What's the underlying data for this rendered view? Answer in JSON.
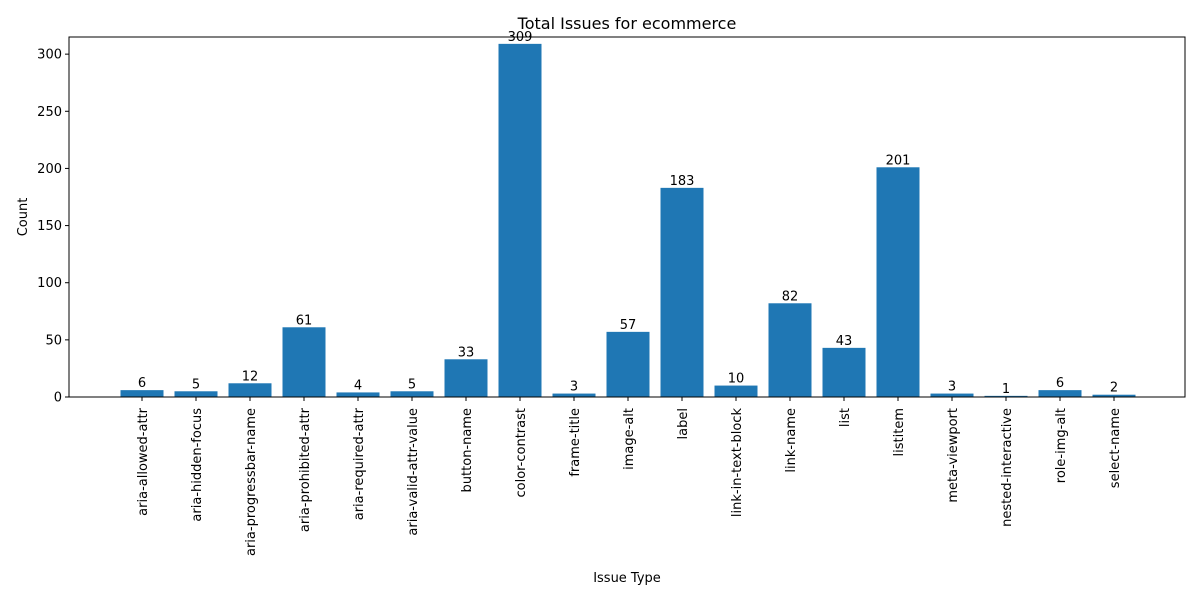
{
  "chart_data": {
    "type": "bar",
    "title": "Total Issues for ecommerce",
    "xlabel": "Issue Type",
    "ylabel": "Count",
    "ylim": [
      0,
      315
    ],
    "yticks": [
      0,
      50,
      100,
      150,
      200,
      250,
      300
    ],
    "grid": false,
    "bar_color": "#1f77b4",
    "categories": [
      "aria-allowed-attr",
      "aria-hidden-focus",
      "aria-progressbar-name",
      "aria-prohibited-attr",
      "aria-required-attr",
      "aria-valid-attr-value",
      "button-name",
      "color-contrast",
      "frame-title",
      "image-alt",
      "label",
      "link-in-text-block",
      "link-name",
      "list",
      "listitem",
      "meta-viewport",
      "nested-interactive",
      "role-img-alt",
      "select-name"
    ],
    "values": [
      6,
      5,
      12,
      61,
      4,
      5,
      33,
      309,
      3,
      57,
      183,
      10,
      82,
      43,
      201,
      3,
      1,
      6,
      2
    ]
  }
}
